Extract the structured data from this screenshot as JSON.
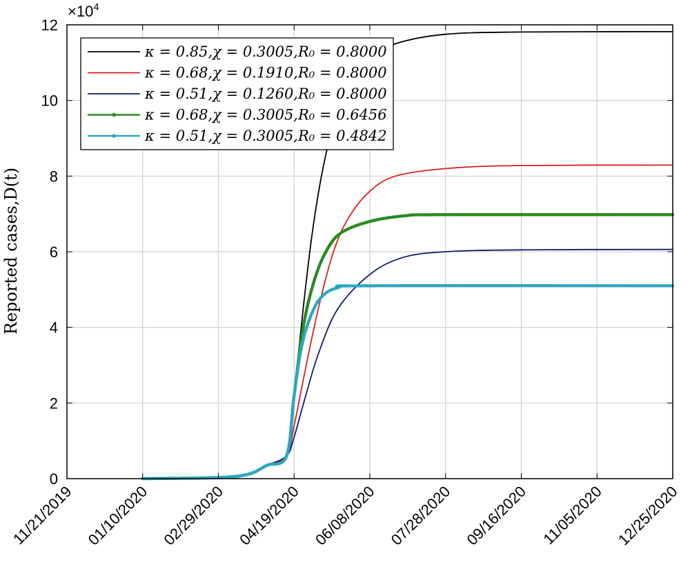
{
  "chart_data": {
    "type": "line",
    "ylabel": "Reported cases,D(t)",
    "y_multiplier_base": "×10",
    "y_multiplier_exp": "4",
    "x_ticks": [
      "11/21/2019",
      "01/10/2020",
      "02/29/2020",
      "04/19/2020",
      "06/08/2020",
      "07/28/2020",
      "09/16/2020",
      "11/05/2020",
      "12/25/2020"
    ],
    "xlim": [
      "11/21/2019",
      "12/25/2020"
    ],
    "y_ticks": [
      "0",
      "2",
      "4",
      "6",
      "8",
      "10",
      "12"
    ],
    "ylim": [
      0,
      120000
    ],
    "grid": true,
    "legend_position": "top-left",
    "series": [
      {
        "name": "κ = 0.85,χ = 0.3005,R₀ = 0.8000",
        "color": "#000000",
        "markers": false,
        "points": [
          [
            "01/10/2020",
            0
          ],
          [
            "02/29/2020",
            300
          ],
          [
            "03/20/2020",
            1200
          ],
          [
            "04/01/2020",
            3500
          ],
          [
            "04/14/2020",
            6000
          ],
          [
            "04/19/2020",
            22000
          ],
          [
            "04/25/2020",
            45000
          ],
          [
            "05/01/2020",
            65000
          ],
          [
            "05/08/2020",
            82000
          ],
          [
            "05/16/2020",
            95000
          ],
          [
            "05/25/2020",
            104000
          ],
          [
            "06/08/2020",
            111000
          ],
          [
            "06/25/2020",
            115000
          ],
          [
            "07/28/2020",
            117500
          ],
          [
            "09/16/2020",
            118100
          ],
          [
            "12/25/2020",
            118200
          ]
        ]
      },
      {
        "name": "κ = 0.68,χ = 0.1910,R₀ = 0.8000",
        "color": "#d81e1e",
        "markers": false,
        "points": [
          [
            "01/10/2020",
            0
          ],
          [
            "02/29/2020",
            300
          ],
          [
            "03/20/2020",
            1200
          ],
          [
            "04/01/2020",
            3500
          ],
          [
            "04/14/2020",
            6000
          ],
          [
            "04/19/2020",
            14000
          ],
          [
            "04/26/2020",
            28000
          ],
          [
            "05/05/2020",
            45000
          ],
          [
            "05/15/2020",
            60000
          ],
          [
            "05/25/2020",
            69000
          ],
          [
            "06/08/2020",
            76000
          ],
          [
            "06/25/2020",
            80000
          ],
          [
            "07/28/2020",
            82000
          ],
          [
            "09/16/2020",
            82800
          ],
          [
            "12/25/2020",
            82900
          ]
        ]
      },
      {
        "name": "κ = 0.51,χ = 0.1260,R₀ = 0.8000",
        "color": "#0d1a6b",
        "markers": false,
        "points": [
          [
            "01/10/2020",
            0
          ],
          [
            "02/29/2020",
            300
          ],
          [
            "03/20/2020",
            1200
          ],
          [
            "04/01/2020",
            3500
          ],
          [
            "04/14/2020",
            6000
          ],
          [
            "04/19/2020",
            11000
          ],
          [
            "04/26/2020",
            21000
          ],
          [
            "05/05/2020",
            33000
          ],
          [
            "05/18/2020",
            45000
          ],
          [
            "06/08/2020",
            54000
          ],
          [
            "06/30/2020",
            58500
          ],
          [
            "07/28/2020",
            60000
          ],
          [
            "09/16/2020",
            60500
          ],
          [
            "12/25/2020",
            60600
          ]
        ]
      },
      {
        "name": "κ = 0.68,χ = 0.3005,R₀ = 0.6456",
        "color": "#2a8a1f",
        "markers": true,
        "points": [
          [
            "01/10/2020",
            0
          ],
          [
            "02/29/2020",
            300
          ],
          [
            "03/20/2020",
            1200
          ],
          [
            "04/01/2020",
            3500
          ],
          [
            "04/14/2020",
            6000
          ],
          [
            "04/19/2020",
            22000
          ],
          [
            "04/25/2020",
            40000
          ],
          [
            "05/02/2020",
            52000
          ],
          [
            "05/10/2020",
            60000
          ],
          [
            "05/20/2020",
            65000
          ],
          [
            "06/08/2020",
            68000
          ],
          [
            "07/01/2020",
            69500
          ],
          [
            "07/28/2020",
            69800
          ],
          [
            "12/25/2020",
            69800
          ]
        ]
      },
      {
        "name": "κ = 0.51,χ = 0.3005,R₀ = 0.4842",
        "color": "#2ca6c2",
        "markers": true,
        "points": [
          [
            "01/10/2020",
            0
          ],
          [
            "02/29/2020",
            300
          ],
          [
            "03/20/2020",
            1200
          ],
          [
            "04/01/2020",
            3500
          ],
          [
            "04/14/2020",
            6000
          ],
          [
            "04/19/2020",
            22000
          ],
          [
            "04/24/2020",
            35000
          ],
          [
            "04/30/2020",
            43000
          ],
          [
            "05/07/2020",
            48000
          ],
          [
            "05/18/2020",
            50500
          ],
          [
            "06/08/2020",
            51000
          ],
          [
            "12/25/2020",
            51000
          ]
        ]
      }
    ]
  }
}
